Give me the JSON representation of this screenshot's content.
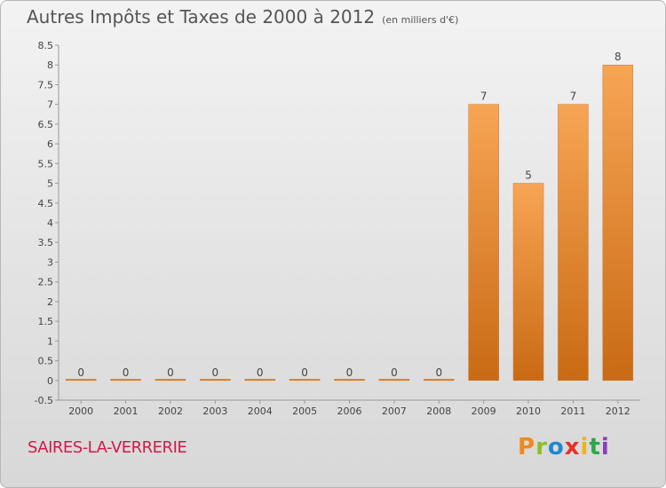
{
  "header": {
    "title": "Autres Impôts et Taxes de 2000 à 2012",
    "subtitle": "(en milliers d'€)"
  },
  "footer": {
    "commune": "SAIRES-LA-VERRERIE",
    "logo_letters": [
      "P",
      "r",
      "o",
      "x",
      "i",
      "t",
      "i"
    ]
  },
  "colors": {
    "bar_top": "#f7a555",
    "bar_bottom": "#c96a14",
    "commune_text": "#d01a4a",
    "axis": "#9a9a9a"
  },
  "chart_data": {
    "type": "bar",
    "title": "Autres Impôts et Taxes de 2000 à 2012",
    "subtitle": "(en milliers d'€)",
    "categories": [
      "2000",
      "2001",
      "2002",
      "2003",
      "2004",
      "2005",
      "2006",
      "2007",
      "2008",
      "2009",
      "2010",
      "2011",
      "2012"
    ],
    "values": [
      0,
      0,
      0,
      0,
      0,
      0,
      0,
      0,
      0,
      7,
      5,
      7,
      8
    ],
    "data_labels": [
      "0",
      "0",
      "0",
      "0",
      "0",
      "0",
      "0",
      "0",
      "0",
      "7",
      "5",
      "7",
      "8"
    ],
    "y_ticks": [
      "-0.5",
      "0",
      "0.5",
      "1",
      "1.5",
      "2",
      "2.5",
      "3",
      "3.5",
      "4",
      "4.5",
      "5",
      "5.5",
      "6",
      "6.5",
      "7",
      "7.5",
      "8",
      "8.5"
    ],
    "ylim": [
      -0.5,
      8.5
    ],
    "xlabel": "",
    "ylabel": "",
    "grid": false
  }
}
